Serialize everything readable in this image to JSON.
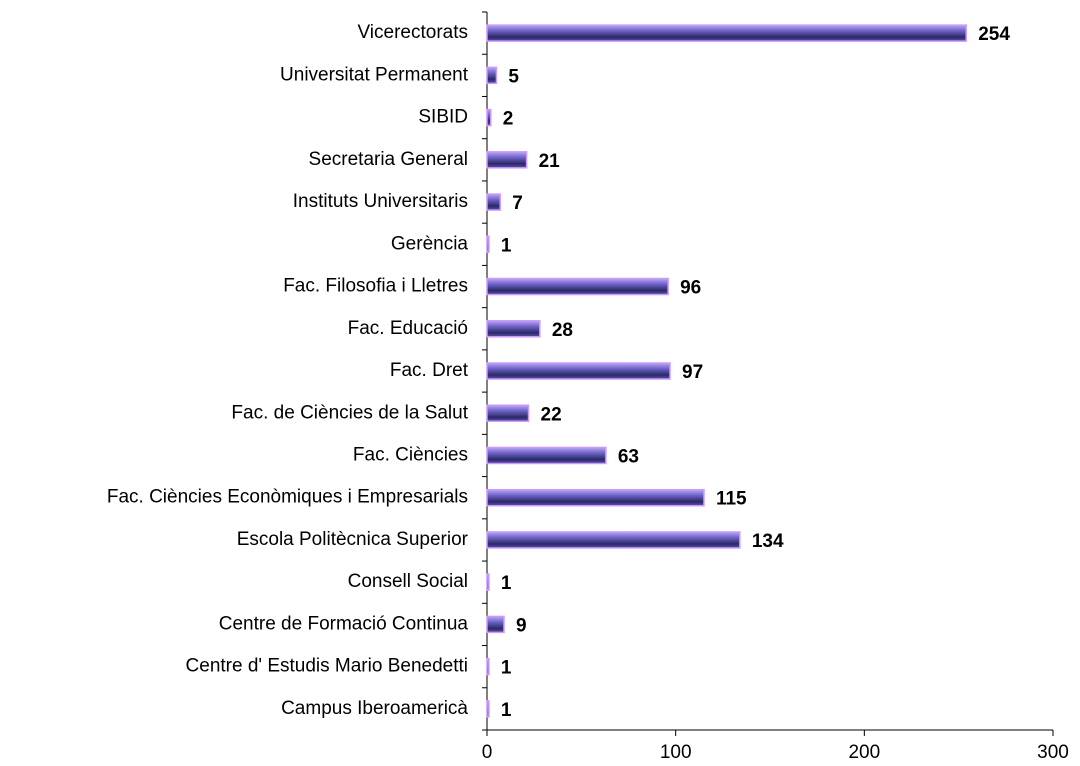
{
  "chart_data": {
    "type": "bar",
    "orientation": "horizontal",
    "categories": [
      "Vicerectorats",
      "Universitat Permanent",
      "SIBID",
      "Secretaria General",
      "Instituts Universitaris",
      "Gerència",
      "Fac. Filosofia i Lletres",
      "Fac. Educació",
      "Fac. Dret",
      "Fac. de Ciències de la Salut",
      "Fac. Ciències",
      "Fac. Ciències Econòmiques i Empresarials",
      "Escola Politècnica Superior",
      "Consell Social",
      "Centre de Formació Continua",
      "Centre d' Estudis Mario Benedetti",
      "Campus Iberoamericà"
    ],
    "values": [
      254,
      5,
      2,
      21,
      7,
      1,
      96,
      28,
      97,
      22,
      63,
      115,
      134,
      1,
      9,
      1,
      1
    ],
    "color": "#4b4b9e",
    "xlim": [
      0,
      300
    ],
    "xticks": [
      0,
      100,
      200,
      300
    ]
  }
}
